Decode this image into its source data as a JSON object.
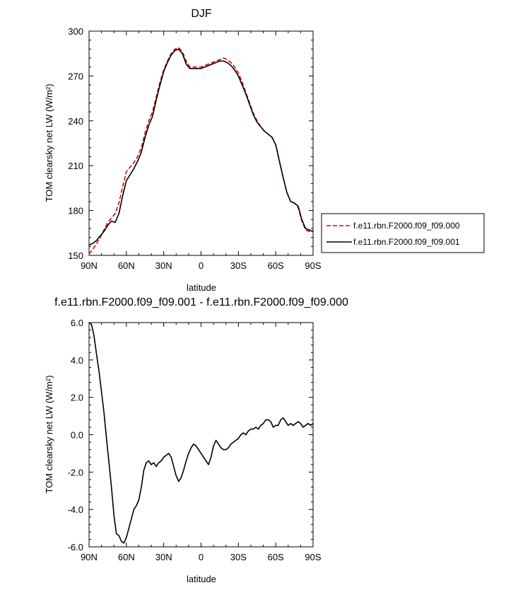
{
  "chart_data": [
    {
      "type": "line",
      "title": "DJF",
      "xlabel": "latitude",
      "ylabel": "TOM clearsky net LW (W/m²)",
      "xlim": [
        90,
        -90
      ],
      "ylim": [
        150,
        300
      ],
      "x_ticks": [
        {
          "v": 90,
          "label": "90N"
        },
        {
          "v": 60,
          "label": "60N"
        },
        {
          "v": 30,
          "label": "30N"
        },
        {
          "v": 0,
          "label": "0"
        },
        {
          "v": -30,
          "label": "30S"
        },
        {
          "v": -60,
          "label": "60S"
        },
        {
          "v": -90,
          "label": "90S"
        }
      ],
      "y_ticks": [
        {
          "v": 150,
          "label": "150"
        },
        {
          "v": 180,
          "label": "180"
        },
        {
          "v": 210,
          "label": "210"
        },
        {
          "v": 240,
          "label": "240"
        },
        {
          "v": 270,
          "label": "270"
        },
        {
          "v": 300,
          "label": "300"
        }
      ],
      "legend": "right",
      "series": [
        {
          "name": "f.e11.rbn.F2000.f09_f09.000",
          "color": "#dd0000",
          "dash": true,
          "x": [
            90,
            87,
            84,
            81,
            78,
            75,
            72,
            69,
            66,
            63,
            60,
            57,
            54,
            51,
            48,
            45,
            42,
            39,
            36,
            33,
            30,
            27,
            24,
            21,
            18,
            15,
            12,
            9,
            6,
            3,
            0,
            -3,
            -6,
            -9,
            -12,
            -15,
            -18,
            -21,
            -24,
            -27,
            -30,
            -33,
            -36,
            -39,
            -42,
            -45,
            -48,
            -51,
            -54,
            -57,
            -60,
            -63,
            -66,
            -69,
            -72,
            -75,
            -78,
            -81,
            -84,
            -87,
            -90
          ],
          "y": [
            151,
            154,
            158,
            162,
            167,
            172,
            175,
            178,
            185,
            196,
            206,
            209,
            212,
            216,
            222,
            232,
            240,
            246,
            256,
            266,
            274,
            280,
            285,
            288,
            289,
            286,
            280,
            276,
            276,
            276,
            276,
            277,
            278,
            279,
            280,
            281,
            282,
            281,
            279,
            276,
            272,
            266,
            259,
            252,
            245,
            240,
            236,
            233,
            231,
            229,
            224,
            213,
            202,
            192,
            186,
            185,
            182,
            173,
            167,
            166,
            166
          ]
        },
        {
          "name": "f.e11.rbn.F2000.f09_f09.001",
          "color": "#000000",
          "dash": false,
          "x": [
            90,
            87,
            84,
            81,
            78,
            75,
            72,
            69,
            66,
            63,
            60,
            57,
            54,
            51,
            48,
            45,
            42,
            39,
            36,
            33,
            30,
            27,
            24,
            21,
            18,
            15,
            12,
            9,
            6,
            3,
            0,
            -3,
            -6,
            -9,
            -12,
            -15,
            -18,
            -21,
            -24,
            -27,
            -30,
            -33,
            -36,
            -39,
            -42,
            -45,
            -48,
            -51,
            -54,
            -57,
            -60,
            -63,
            -66,
            -69,
            -72,
            -75,
            -78,
            -81,
            -84,
            -87,
            -90
          ],
          "y": [
            157,
            158,
            160,
            163,
            166,
            170,
            173,
            172,
            178,
            190,
            200,
            204,
            208,
            213,
            219,
            229,
            237,
            243,
            254,
            264,
            273,
            279,
            284,
            287,
            288,
            285,
            278,
            275,
            275,
            275,
            275,
            276,
            277,
            278,
            279,
            280,
            280,
            279,
            277,
            274,
            270,
            264,
            258,
            251,
            244,
            239,
            236,
            233,
            231,
            229,
            224,
            213,
            202,
            192,
            186,
            185,
            183,
            174,
            168,
            167,
            166
          ]
        }
      ]
    },
    {
      "type": "line",
      "title": "f.e11.rbn.F2000.f09_f09.001 - f.e11.rbn.F2000.f09_f09.000",
      "xlabel": "latitude",
      "ylabel": "TOM clearsky net LW (W/m²)",
      "xlim": [
        90,
        -90
      ],
      "ylim": [
        -6.0,
        6.0
      ],
      "x_ticks": [
        {
          "v": 90,
          "label": "90N"
        },
        {
          "v": 60,
          "label": "60N"
        },
        {
          "v": 30,
          "label": "30N"
        },
        {
          "v": 0,
          "label": "0"
        },
        {
          "v": -30,
          "label": "30S"
        },
        {
          "v": -60,
          "label": "60S"
        },
        {
          "v": -90,
          "label": "90S"
        }
      ],
      "y_ticks": [
        {
          "v": -6.0,
          "label": "-6.0"
        },
        {
          "v": -4.0,
          "label": "-4.0"
        },
        {
          "v": -2.0,
          "label": "-2.0"
        },
        {
          "v": 0.0,
          "label": "0.0"
        },
        {
          "v": 2.0,
          "label": "2.0"
        },
        {
          "v": 4.0,
          "label": "4.0"
        },
        {
          "v": 6.0,
          "label": "6.0"
        }
      ],
      "series": [
        {
          "name": "",
          "color": "#000000",
          "dash": false,
          "x": [
            90,
            88,
            86,
            84,
            82,
            80,
            78,
            76,
            74,
            72,
            70,
            68,
            66,
            64,
            62,
            60,
            58,
            56,
            54,
            52,
            50,
            48,
            46,
            44,
            42,
            40,
            38,
            36,
            34,
            32,
            30,
            28,
            26,
            24,
            22,
            20,
            18,
            16,
            14,
            12,
            10,
            8,
            6,
            4,
            2,
            0,
            -2,
            -4,
            -6,
            -8,
            -10,
            -12,
            -14,
            -16,
            -18,
            -20,
            -22,
            -24,
            -26,
            -28,
            -30,
            -32,
            -34,
            -36,
            -38,
            -40,
            -42,
            -44,
            -46,
            -48,
            -50,
            -52,
            -54,
            -56,
            -58,
            -60,
            -62,
            -64,
            -66,
            -68,
            -70,
            -72,
            -74,
            -76,
            -78,
            -80,
            -82,
            -84,
            -86,
            -88,
            -90
          ],
          "y": [
            6.0,
            5.9,
            5.3,
            4.3,
            3.4,
            2.3,
            1.2,
            -0.2,
            -1.5,
            -2.8,
            -4.3,
            -5.3,
            -5.4,
            -5.7,
            -5.8,
            -5.5,
            -5.0,
            -4.5,
            -4.0,
            -3.8,
            -3.5,
            -2.8,
            -1.9,
            -1.5,
            -1.4,
            -1.6,
            -1.5,
            -1.7,
            -1.5,
            -1.4,
            -1.2,
            -1.1,
            -1.0,
            -1.2,
            -1.7,
            -2.2,
            -2.5,
            -2.3,
            -1.9,
            -1.4,
            -1.0,
            -0.7,
            -0.5,
            -0.6,
            -0.8,
            -1.0,
            -1.2,
            -1.4,
            -1.6,
            -1.2,
            -0.6,
            -0.3,
            -0.5,
            -0.7,
            -0.8,
            -0.8,
            -0.7,
            -0.5,
            -0.4,
            -0.3,
            -0.2,
            0.0,
            0.1,
            0.0,
            0.2,
            0.3,
            0.3,
            0.4,
            0.3,
            0.5,
            0.6,
            0.8,
            0.8,
            0.7,
            0.4,
            0.5,
            0.5,
            0.8,
            0.9,
            0.7,
            0.5,
            0.6,
            0.5,
            0.6,
            0.7,
            0.6,
            0.4,
            0.5,
            0.6,
            0.5,
            0.6
          ]
        }
      ]
    }
  ]
}
